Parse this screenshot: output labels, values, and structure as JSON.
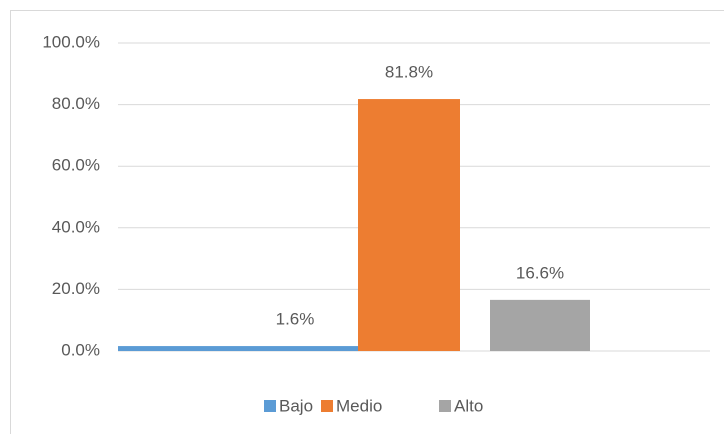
{
  "chart_data": {
    "type": "bar",
    "categories": [
      null
    ],
    "series": [
      {
        "name": "Bajo",
        "color": "#5b9bd5",
        "values": [
          1.6
        ],
        "value_labels": [
          "1.6%"
        ]
      },
      {
        "name": "Medio",
        "color": "#ed7d31",
        "values": [
          81.8
        ],
        "value_labels": [
          "81.8%"
        ]
      },
      {
        "name": "Alto",
        "color": "#a5a5a5",
        "values": [
          16.6
        ],
        "value_labels": [
          "16.6%"
        ]
      }
    ],
    "ylim": [
      0,
      100
    ],
    "yticks": [
      {
        "value": 0,
        "label": "0.0%"
      },
      {
        "value": 20,
        "label": "20.0%"
      },
      {
        "value": 40,
        "label": "40.0%"
      },
      {
        "value": 60,
        "label": "60.0%"
      },
      {
        "value": 80,
        "label": "80.0%"
      },
      {
        "value": 100,
        "label": "100.0%"
      }
    ],
    "grid": true,
    "legend": "bottom"
  }
}
